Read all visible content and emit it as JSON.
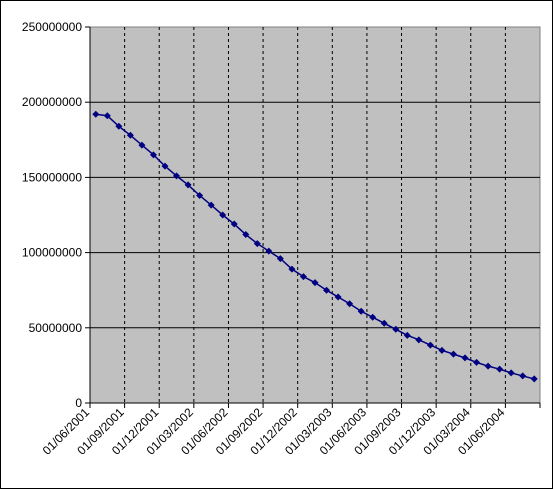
{
  "chart_data": {
    "type": "line",
    "categories": [
      "01/06/2001",
      null,
      null,
      "01/09/2001",
      null,
      null,
      "01/12/2001",
      null,
      null,
      "01/03/2002",
      null,
      null,
      "01/06/2002",
      null,
      null,
      "01/09/2002",
      null,
      null,
      "01/12/2002",
      null,
      null,
      "01/03/2003",
      null,
      null,
      "01/06/2003",
      null,
      null,
      "01/09/2003",
      null,
      null,
      "01/12/2003",
      null,
      null,
      "01/03/2004",
      null,
      null,
      "01/06/2004",
      null,
      null
    ],
    "values": [
      192000000,
      191000000,
      184000000,
      178000000,
      171500000,
      165000000,
      157500000,
      151000000,
      145000000,
      138000000,
      131600000,
      125000000,
      119000000,
      112000000,
      106000000,
      101000000,
      96000000,
      89000000,
      84000000,
      80000000,
      75000000,
      70500000,
      66000000,
      61000000,
      57000000,
      53000000,
      49000000,
      45000000,
      42000000,
      38500000,
      35000000,
      32500000,
      30000000,
      27000000,
      24500000,
      22500000,
      20000000,
      18000000,
      16000000
    ],
    "color": "#000080",
    "ylim": [
      0,
      250000000
    ],
    "yticks": [
      0,
      50000000,
      100000000,
      150000000,
      200000000,
      250000000
    ],
    "grid": true
  }
}
